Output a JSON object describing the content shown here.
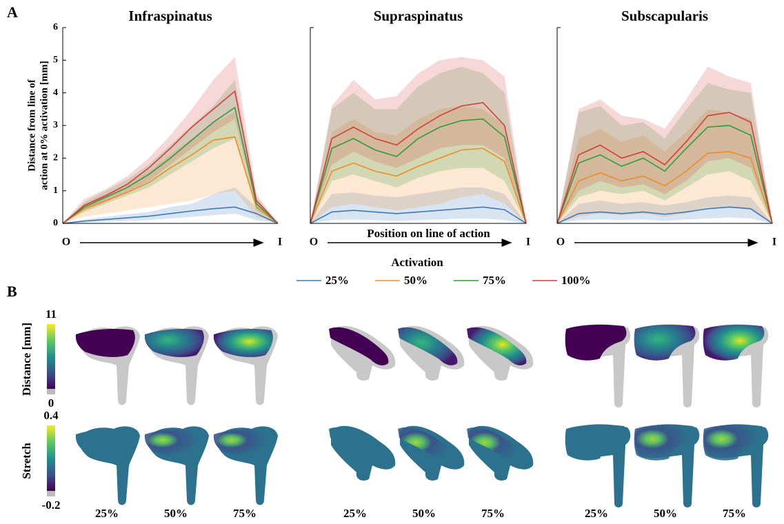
{
  "panel_labels": [
    "A",
    "B"
  ],
  "chart_data": [
    {
      "type": "line",
      "title": "Infraspinatus",
      "ylabel": [
        "Distance from line of",
        "action at 0% activation [mm]"
      ],
      "categories": [
        "O",
        null,
        null,
        null,
        null,
        null,
        null,
        null,
        null,
        null,
        "I"
      ],
      "ylim": [
        0,
        6
      ],
      "yticks": [
        0,
        1,
        2,
        3,
        4,
        5,
        6
      ],
      "legend_title": "Activation",
      "series": [
        {
          "name": "25%",
          "color": "#3a7ab8",
          "values": [
            0,
            0.07,
            0.12,
            0.17,
            0.22,
            0.3,
            0.38,
            0.45,
            0.5,
            0.3,
            0
          ],
          "lower": [
            0,
            0.03,
            0.05,
            0.08,
            0.1,
            0.15,
            0.2,
            0.25,
            0.3,
            0.1,
            0
          ],
          "upper": [
            0,
            0.12,
            0.2,
            0.28,
            0.35,
            0.5,
            0.6,
            0.9,
            1.1,
            0.5,
            0
          ]
        },
        {
          "name": "50%",
          "color": "#f08a24",
          "values": [
            0,
            0.45,
            0.7,
            0.95,
            1.25,
            1.7,
            2.1,
            2.55,
            2.65,
            0.5,
            0
          ],
          "lower": [
            0,
            0.2,
            0.3,
            0.4,
            0.5,
            0.6,
            0.7,
            0.9,
            1.0,
            0.2,
            0
          ],
          "upper": [
            0,
            0.6,
            0.9,
            1.2,
            1.6,
            2.1,
            2.6,
            3.1,
            3.4,
            0.7,
            0
          ]
        },
        {
          "name": "75%",
          "color": "#2e9a3a",
          "values": [
            0,
            0.5,
            0.8,
            1.1,
            1.5,
            2.0,
            2.55,
            3.1,
            3.55,
            0.6,
            0
          ],
          "lower": [
            0,
            0.35,
            0.6,
            0.85,
            1.1,
            1.5,
            1.9,
            2.3,
            2.6,
            0.4,
            0
          ],
          "upper": [
            0,
            0.65,
            1.0,
            1.35,
            1.8,
            2.4,
            3.0,
            3.6,
            4.4,
            0.8,
            0
          ]
        },
        {
          "name": "100%",
          "color": "#d63a3a",
          "values": [
            0,
            0.55,
            0.85,
            1.2,
            1.7,
            2.3,
            2.95,
            3.5,
            4.05,
            0.7,
            0
          ],
          "lower": [
            0,
            0.4,
            0.65,
            0.95,
            1.3,
            1.8,
            2.3,
            2.8,
            3.2,
            0.5,
            0
          ],
          "upper": [
            0,
            0.75,
            1.05,
            1.45,
            2.0,
            2.7,
            3.5,
            4.4,
            5.1,
            0.9,
            0
          ]
        }
      ]
    },
    {
      "type": "line",
      "title": "Supraspinatus",
      "xlabel": "Position on line of action",
      "categories": [
        "O",
        null,
        null,
        null,
        null,
        null,
        null,
        null,
        null,
        null,
        "I"
      ],
      "ylim": [
        0,
        6
      ],
      "series": [
        {
          "name": "25%",
          "color": "#3a7ab8",
          "values": [
            0,
            0.35,
            0.4,
            0.35,
            0.3,
            0.35,
            0.4,
            0.45,
            0.5,
            0.42,
            0
          ],
          "lower": [
            0,
            0.1,
            0.12,
            0.1,
            0.08,
            0.1,
            0.12,
            0.15,
            0.15,
            0.1,
            0
          ],
          "upper": [
            0,
            0.9,
            0.95,
            0.85,
            0.8,
            0.9,
            1.0,
            1.1,
            1.1,
            0.9,
            0
          ]
        },
        {
          "name": "50%",
          "color": "#f08a24",
          "values": [
            0,
            1.6,
            1.85,
            1.6,
            1.45,
            1.75,
            2.0,
            2.25,
            2.3,
            1.9,
            0
          ],
          "lower": [
            0,
            0.5,
            0.6,
            0.5,
            0.4,
            0.5,
            0.6,
            0.8,
            0.9,
            0.6,
            0
          ],
          "upper": [
            0,
            2.8,
            3.2,
            2.8,
            2.7,
            3.2,
            3.5,
            3.6,
            3.5,
            3.0,
            0
          ]
        },
        {
          "name": "75%",
          "color": "#2e9a3a",
          "values": [
            0,
            2.3,
            2.6,
            2.25,
            2.05,
            2.6,
            2.95,
            3.15,
            3.2,
            2.65,
            0
          ],
          "lower": [
            0,
            1.3,
            1.5,
            1.3,
            1.1,
            1.4,
            1.6,
            1.7,
            1.7,
            1.3,
            0
          ],
          "upper": [
            0,
            3.5,
            4.0,
            3.5,
            3.5,
            4.2,
            4.6,
            4.8,
            4.6,
            4.0,
            0
          ]
        },
        {
          "name": "100%",
          "color": "#d63a3a",
          "values": [
            0,
            2.6,
            2.95,
            2.6,
            2.4,
            2.9,
            3.3,
            3.6,
            3.7,
            3.0,
            0
          ],
          "lower": [
            0,
            1.8,
            2.2,
            1.9,
            1.7,
            2.0,
            2.3,
            2.4,
            2.4,
            2.0,
            0
          ],
          "upper": [
            0,
            3.6,
            4.4,
            3.8,
            3.9,
            4.6,
            5.0,
            5.1,
            5.0,
            4.5,
            0
          ]
        }
      ]
    },
    {
      "type": "line",
      "title": "Subscapularis",
      "categories": [
        "O",
        null,
        null,
        null,
        null,
        null,
        null,
        null,
        null,
        null,
        "I"
      ],
      "ylim": [
        0,
        6
      ],
      "series": [
        {
          "name": "25%",
          "color": "#3a7ab8",
          "values": [
            0,
            0.3,
            0.35,
            0.3,
            0.35,
            0.28,
            0.35,
            0.45,
            0.5,
            0.45,
            0
          ],
          "lower": [
            0,
            0.1,
            0.12,
            0.1,
            0.12,
            0.08,
            0.12,
            0.15,
            0.18,
            0.15,
            0
          ],
          "upper": [
            0,
            0.6,
            0.7,
            0.6,
            0.65,
            0.55,
            0.65,
            0.8,
            0.85,
            0.8,
            0
          ]
        },
        {
          "name": "50%",
          "color": "#f08a24",
          "values": [
            0,
            1.3,
            1.55,
            1.3,
            1.45,
            1.15,
            1.6,
            2.15,
            2.2,
            2.0,
            0
          ],
          "lower": [
            0,
            0.2,
            0.3,
            0.25,
            0.3,
            0.2,
            0.3,
            0.5,
            0.5,
            0.4,
            0
          ],
          "upper": [
            0,
            2.6,
            2.9,
            2.5,
            2.7,
            2.2,
            2.8,
            3.5,
            3.4,
            3.2,
            0
          ]
        },
        {
          "name": "75%",
          "color": "#2e9a3a",
          "values": [
            0,
            1.85,
            2.1,
            1.75,
            2.0,
            1.6,
            2.3,
            2.95,
            3.0,
            2.7,
            0
          ],
          "lower": [
            0,
            0.8,
            1.0,
            0.9,
            1.0,
            0.7,
            1.1,
            1.5,
            1.6,
            1.3,
            0
          ],
          "upper": [
            0,
            3.4,
            3.6,
            3.0,
            3.1,
            2.6,
            3.5,
            4.3,
            4.1,
            4.0,
            0
          ]
        },
        {
          "name": "100%",
          "color": "#d63a3a",
          "values": [
            0,
            2.1,
            2.4,
            2.0,
            2.2,
            1.8,
            2.5,
            3.3,
            3.4,
            3.1,
            0
          ],
          "lower": [
            0,
            1.0,
            1.3,
            1.1,
            1.2,
            0.9,
            1.3,
            1.9,
            2.0,
            1.7,
            0
          ],
          "upper": [
            0,
            3.5,
            3.8,
            3.3,
            3.2,
            2.9,
            3.8,
            4.8,
            4.5,
            4.3,
            0
          ]
        }
      ]
    }
  ],
  "panel_b": {
    "colorbars": [
      {
        "label": "Distance [mm]",
        "max": 11,
        "min": 0
      },
      {
        "label": "Stretch",
        "max": 0.4,
        "min": -0.2
      }
    ],
    "columns": [
      "25%",
      "50%",
      "75%",
      "25%",
      "50%",
      "75%",
      "25%",
      "50%",
      "75%"
    ]
  }
}
